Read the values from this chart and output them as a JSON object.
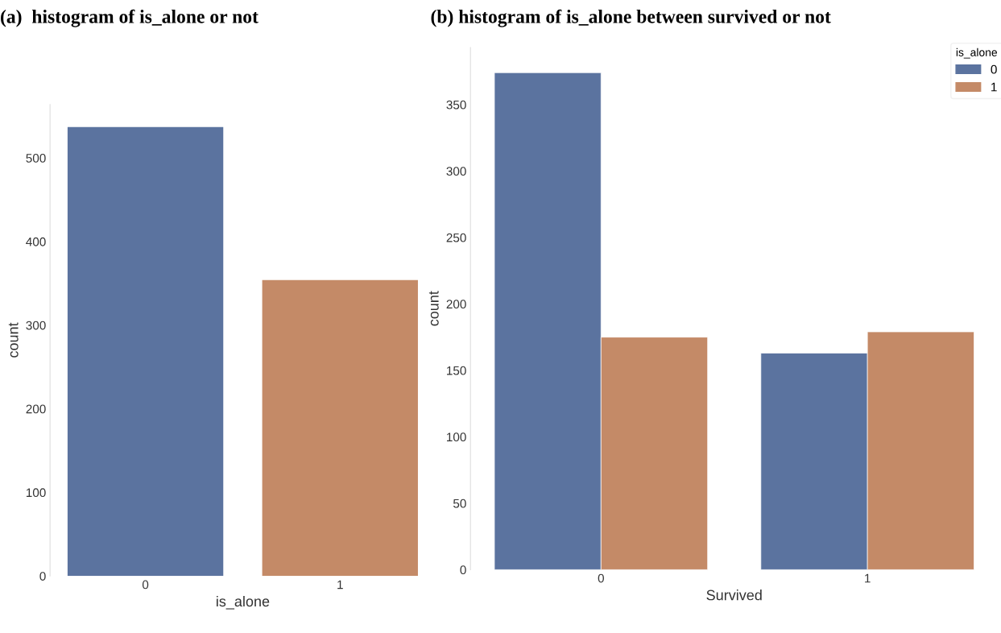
{
  "chart_data": [
    {
      "type": "bar",
      "title": "(a)  histogram of is_alone or not",
      "xlabel": "is_alone",
      "ylabel": "count",
      "categories": [
        "0",
        "1"
      ],
      "values": [
        537,
        354
      ],
      "colors": [
        "#5b739f",
        "#c48a67"
      ],
      "ylim": [
        0,
        564
      ],
      "yticks": [
        0,
        100,
        200,
        300,
        400,
        500
      ],
      "grid": false,
      "legend": false
    },
    {
      "type": "bar",
      "title": "(b) histogram of is_alone between survived or not",
      "xlabel": "Survived",
      "ylabel": "count",
      "legend_title": "is_alone",
      "categories": [
        "0",
        "1"
      ],
      "series": [
        {
          "name": "0",
          "color": "#5b739f",
          "values": [
            374,
            163
          ]
        },
        {
          "name": "1",
          "color": "#c48a67",
          "values": [
            175,
            179
          ]
        }
      ],
      "ylim": [
        0,
        393
      ],
      "yticks": [
        0,
        50,
        100,
        150,
        200,
        250,
        300,
        350
      ],
      "grid": false,
      "legend": "top right"
    }
  ]
}
